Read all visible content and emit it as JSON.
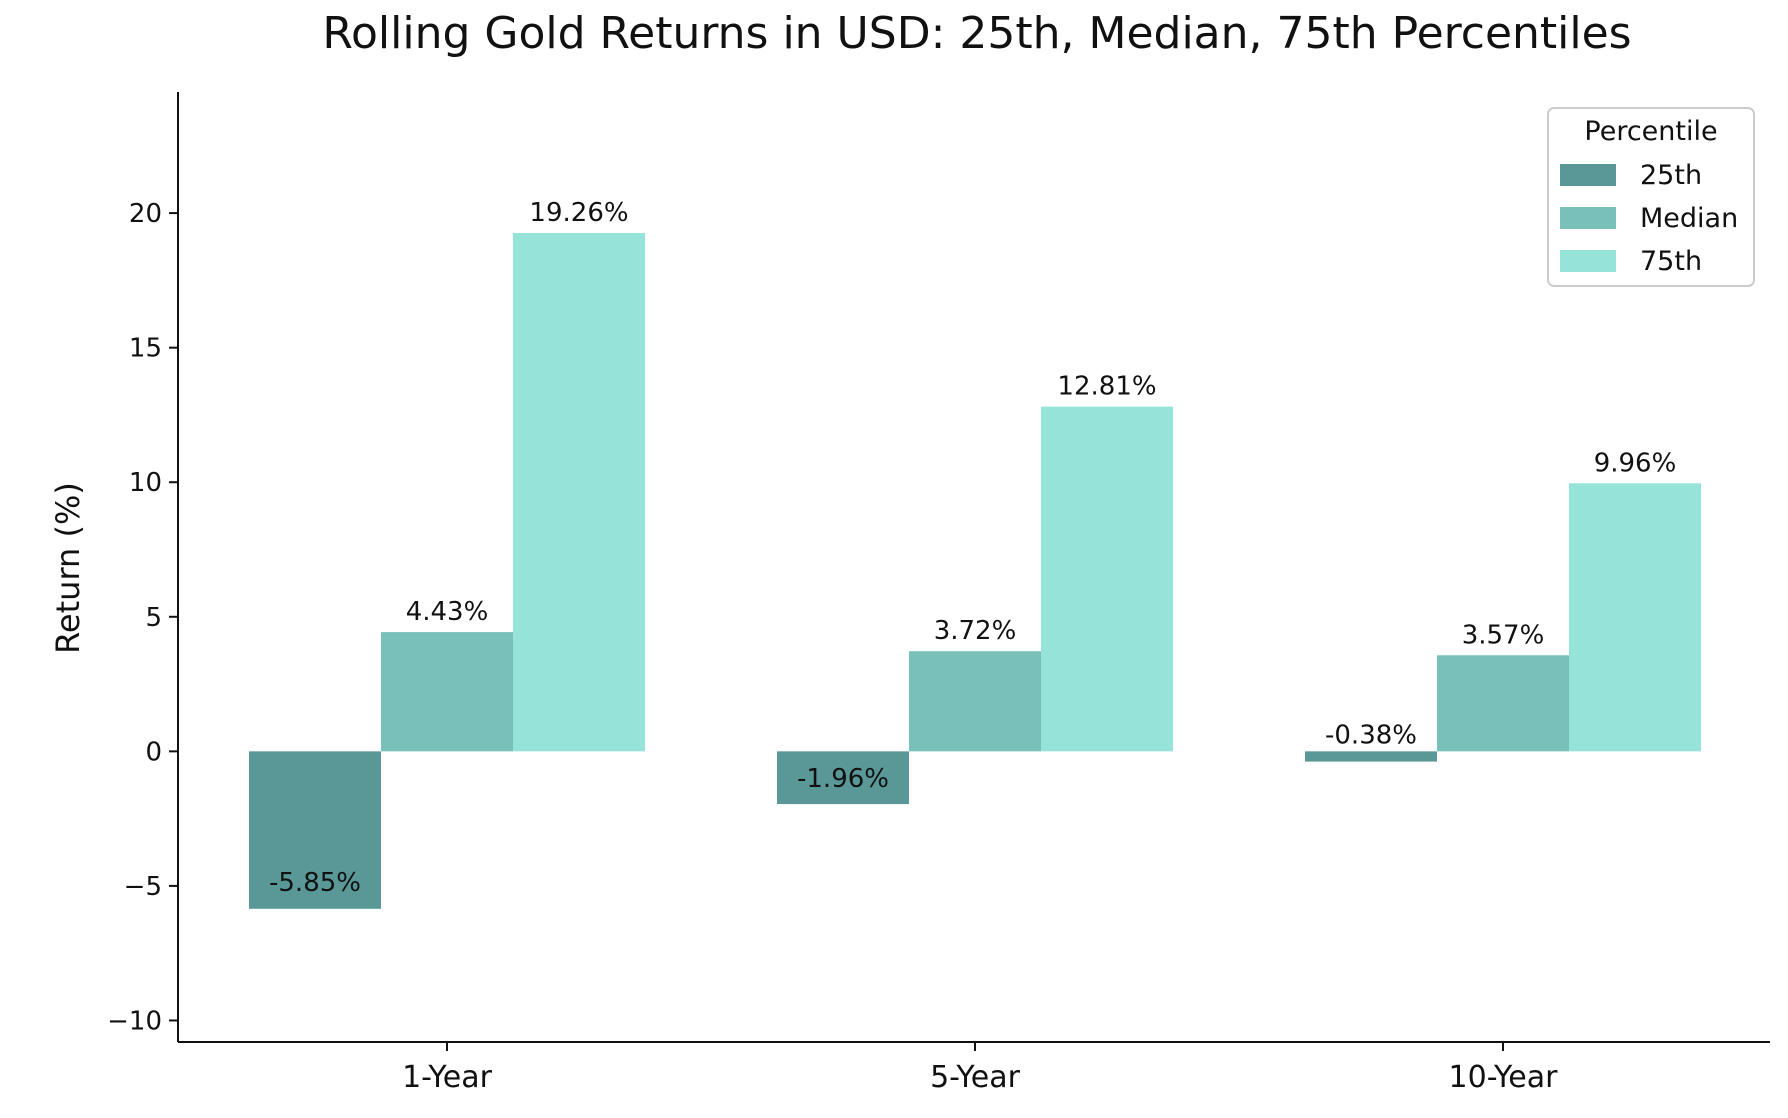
{
  "chart_data": {
    "type": "bar",
    "title": "Rolling Gold Returns in USD: 25th, Median, 75th Percentiles",
    "xlabel": "",
    "ylabel": "Return (%)",
    "categories": [
      "1-Year",
      "5-Year",
      "10-Year"
    ],
    "series": [
      {
        "name": "25th",
        "color": "#5a9898",
        "values": [
          -5.85,
          -1.96,
          -0.38
        ],
        "labels": [
          "-5.85%",
          "-1.96%",
          "-0.38%"
        ]
      },
      {
        "name": "Median",
        "color": "#79bfba",
        "values": [
          4.43,
          3.72,
          3.57
        ],
        "labels": [
          "4.43%",
          "3.72%",
          "3.57%"
        ]
      },
      {
        "name": "75th",
        "color": "#96e4d9",
        "values": [
          19.26,
          12.81,
          9.96
        ],
        "labels": [
          "19.26%",
          "12.81%",
          "9.96%"
        ]
      }
    ],
    "ylim": [
      -10.8,
      24.5
    ],
    "yticks": [
      -10,
      -5,
      0,
      5,
      10,
      15,
      20
    ],
    "ytick_labels": [
      "−10",
      "−5",
      "0",
      "5",
      "10",
      "15",
      "20"
    ],
    "grid": false,
    "legend": {
      "title": "Percentile",
      "position": "top-right"
    }
  }
}
